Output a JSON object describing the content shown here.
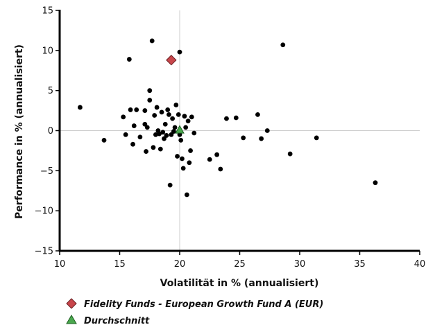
{
  "chart_data": {
    "type": "scatter",
    "xlabel": "Volatilität in % (annualisiert)",
    "ylabel": "Performance in % (annualisiert)",
    "xlim": [
      10,
      40
    ],
    "ylim": [
      -15,
      15
    ],
    "xticks": [
      10,
      15,
      20,
      25,
      30,
      35,
      40
    ],
    "yticks": [
      -15,
      -10,
      -5,
      0,
      5,
      10,
      15
    ],
    "xtick_labels": [
      "10",
      "15",
      "20",
      "25",
      "30",
      "35",
      "40"
    ],
    "ytick_labels": [
      "−15",
      "−10",
      "−5",
      "0",
      "5",
      "10",
      "15"
    ],
    "grid": false,
    "reference_lines": {
      "x": 20,
      "y": 0,
      "color": "#cccccc"
    },
    "legend_position": "bottom-left",
    "series": [
      {
        "name": "",
        "marker": "circle",
        "color": "#000000",
        "points": [
          [
            11.7,
            2.9
          ],
          [
            13.7,
            -1.2
          ],
          [
            15.3,
            1.7
          ],
          [
            15.5,
            -0.5
          ],
          [
            15.8,
            8.9
          ],
          [
            15.9,
            2.6
          ],
          [
            16.1,
            -1.7
          ],
          [
            16.2,
            0.6
          ],
          [
            16.4,
            2.6
          ],
          [
            16.7,
            -0.8
          ],
          [
            17.1,
            0.8
          ],
          [
            17.1,
            2.5
          ],
          [
            17.2,
            -2.6
          ],
          [
            17.3,
            0.4
          ],
          [
            17.5,
            3.8
          ],
          [
            17.5,
            5.0
          ],
          [
            17.7,
            11.2
          ],
          [
            17.8,
            -2.1
          ],
          [
            17.9,
            1.9
          ],
          [
            18.0,
            -0.5
          ],
          [
            18.1,
            2.9
          ],
          [
            18.2,
            0.0
          ],
          [
            18.3,
            -0.4
          ],
          [
            18.4,
            -2.3
          ],
          [
            18.5,
            2.3
          ],
          [
            18.6,
            -0.2
          ],
          [
            18.7,
            -1.0
          ],
          [
            18.8,
            0.8
          ],
          [
            18.9,
            -0.6
          ],
          [
            19.0,
            2.6
          ],
          [
            19.1,
            2.0
          ],
          [
            19.2,
            -6.8
          ],
          [
            19.3,
            -0.5
          ],
          [
            19.4,
            1.5
          ],
          [
            19.5,
            -0.1
          ],
          [
            19.6,
            0.4
          ],
          [
            19.7,
            3.2
          ],
          [
            19.8,
            -3.2
          ],
          [
            19.9,
            2.0
          ],
          [
            20.0,
            9.8
          ],
          [
            20.0,
            -0.5
          ],
          [
            20.1,
            -1.2
          ],
          [
            20.2,
            -3.5
          ],
          [
            20.3,
            -4.7
          ],
          [
            20.4,
            1.8
          ],
          [
            20.5,
            0.4
          ],
          [
            20.6,
            -8.0
          ],
          [
            20.7,
            1.2
          ],
          [
            20.8,
            -4.0
          ],
          [
            20.9,
            -2.5
          ],
          [
            21.0,
            1.7
          ],
          [
            21.2,
            -0.3
          ],
          [
            22.5,
            -3.6
          ],
          [
            23.1,
            -3.0
          ],
          [
            23.4,
            -4.8
          ],
          [
            23.9,
            1.5
          ],
          [
            24.7,
            1.6
          ],
          [
            25.3,
            -0.9
          ],
          [
            26.5,
            2.0
          ],
          [
            26.8,
            -1.0
          ],
          [
            27.3,
            0.0
          ],
          [
            28.6,
            10.7
          ],
          [
            29.2,
            -2.9
          ],
          [
            31.4,
            -0.9
          ],
          [
            36.3,
            -6.5
          ]
        ]
      },
      {
        "name": "Fidelity Funds - European Growth Fund A (EUR)",
        "marker": "diamond",
        "color": "#c8464b",
        "points": [
          [
            19.3,
            8.8
          ]
        ]
      },
      {
        "name": "Durchschnitt",
        "marker": "triangle",
        "color": "#4aa84e",
        "points": [
          [
            20.0,
            0.1
          ]
        ]
      }
    ]
  }
}
